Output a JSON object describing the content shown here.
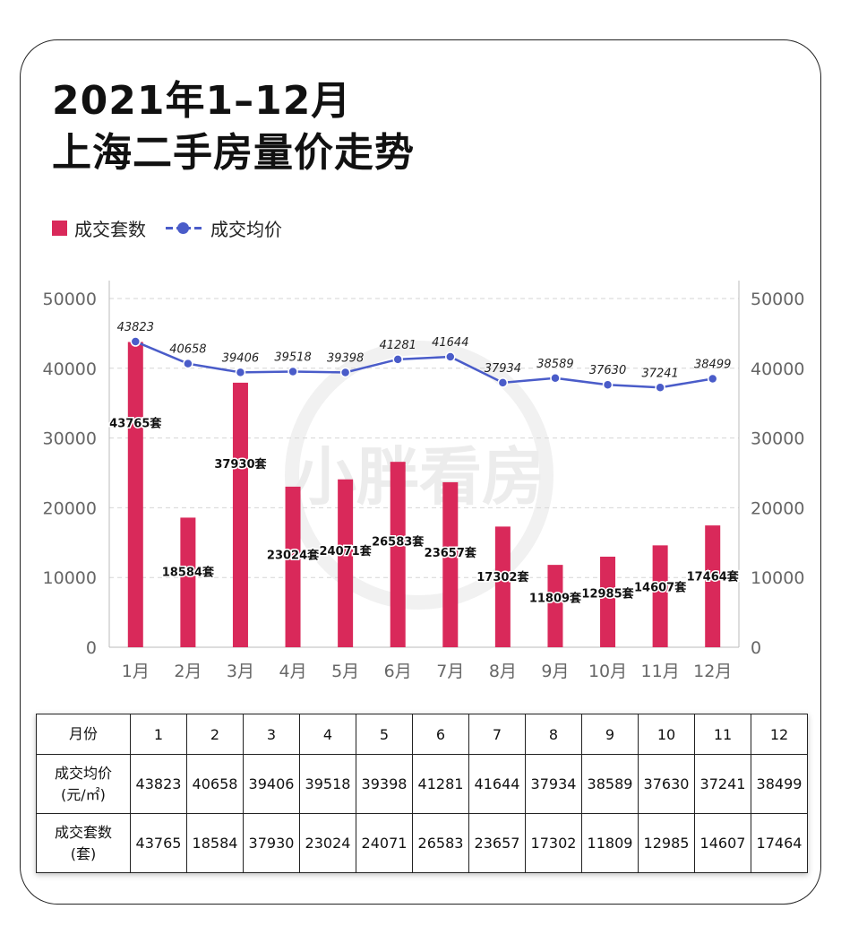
{
  "title": {
    "line1": "2021年1–12月",
    "line2": "上海二手房量价走势"
  },
  "legend": {
    "bar_label": "成交套数",
    "line_label": "成交均价"
  },
  "colors": {
    "bar": "#d9295a",
    "line": "#4a5cc9"
  },
  "chart_data": {
    "type": "bar",
    "categories": [
      "1月",
      "2月",
      "3月",
      "4月",
      "5月",
      "6月",
      "7月",
      "8月",
      "9月",
      "10月",
      "11月",
      "12月"
    ],
    "series": [
      {
        "name": "成交套数",
        "type": "bar",
        "values": [
          43765,
          18584,
          37930,
          23024,
          24071,
          26583,
          23657,
          17302,
          11809,
          12985,
          14607,
          17464
        ],
        "label_suffix": "套"
      },
      {
        "name": "成交均价",
        "type": "line",
        "values": [
          43823,
          40658,
          39406,
          39518,
          39398,
          41281,
          41644,
          37934,
          38589,
          37630,
          37241,
          38499
        ]
      }
    ],
    "ylim": [
      0,
      50000
    ],
    "yticks": [
      "0",
      "10000",
      "20000",
      "30000",
      "40000",
      "50000"
    ],
    "grid": true,
    "legend_position": "top-left"
  },
  "watermark": "小胖看房",
  "table": {
    "header": {
      "label": "月份",
      "values": [
        "1",
        "2",
        "3",
        "4",
        "5",
        "6",
        "7",
        "8",
        "9",
        "10",
        "11",
        "12"
      ]
    },
    "price_row": {
      "label_line1": "成交均价",
      "label_line2": "(元/㎡)",
      "values": [
        "43823",
        "40658",
        "39406",
        "39518",
        "39398",
        "41281",
        "41644",
        "37934",
        "38589",
        "37630",
        "37241",
        "38499"
      ]
    },
    "count_row": {
      "label_line1": "成交套数",
      "label_line2": "(套)",
      "values": [
        "43765",
        "18584",
        "37930",
        "23024",
        "24071",
        "26583",
        "23657",
        "17302",
        "11809",
        "12985",
        "14607",
        "17464"
      ]
    }
  }
}
